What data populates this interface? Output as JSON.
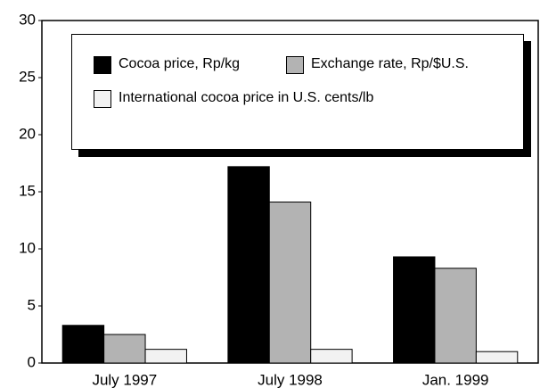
{
  "chart_data": {
    "type": "bar",
    "categories": [
      "July 1997",
      "July 1998",
      "Jan. 1999"
    ],
    "series": [
      {
        "name": "Cocoa price, Rp/kg",
        "color": "#000000",
        "values": [
          3.3,
          17.2,
          9.3
        ]
      },
      {
        "name": "Exchange rate, Rp/$U.S.",
        "color": "#b3b3b3",
        "values": [
          2.5,
          14.1,
          8.3
        ]
      },
      {
        "name": "International cocoa price in U.S. cents/lb",
        "color": "#f2f2f2",
        "values": [
          1.2,
          1.2,
          1.0
        ]
      }
    ],
    "ylim": [
      0,
      30
    ],
    "yticks": [
      0,
      5,
      10,
      15,
      20,
      25,
      30
    ],
    "grid": false,
    "legend": "top"
  }
}
